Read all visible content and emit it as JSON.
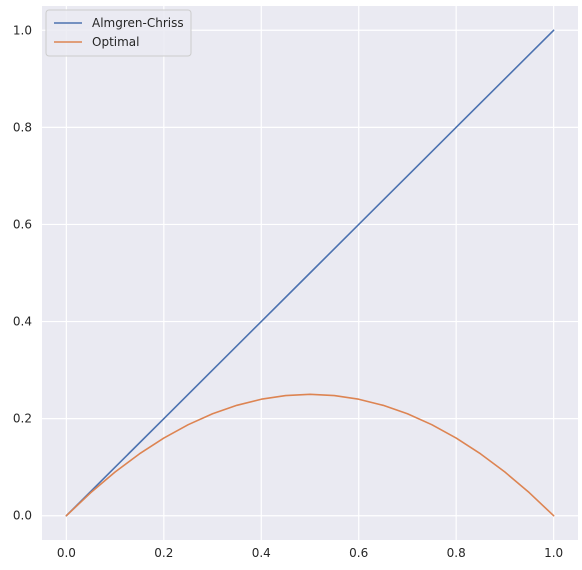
{
  "chart_data": {
    "type": "line",
    "title": "",
    "xlabel": "",
    "ylabel": "",
    "xlim": [
      -0.05,
      1.05
    ],
    "ylim": [
      -0.05,
      1.05
    ],
    "xticks": [
      0.0,
      0.2,
      0.4,
      0.6,
      0.8,
      1.0
    ],
    "xtick_labels": [
      "0.0",
      "0.2",
      "0.4",
      "0.6",
      "0.8",
      "1.0"
    ],
    "yticks": [
      0.0,
      0.2,
      0.4,
      0.6,
      0.8,
      1.0
    ],
    "ytick_labels": [
      "0.0",
      "0.2",
      "0.4",
      "0.6",
      "0.8",
      "1.0"
    ],
    "grid": true,
    "legend_position": "top-left",
    "background_color": "#eaeaf2",
    "grid_color": "#ffffff",
    "series": [
      {
        "name": "Almgren-Chriss",
        "color": "#4c72b0",
        "x": [
          0.0,
          0.1,
          0.2,
          0.3,
          0.4,
          0.5,
          0.6,
          0.7,
          0.8,
          0.9,
          1.0
        ],
        "y": [
          0.0,
          0.1,
          0.2,
          0.3,
          0.4,
          0.5,
          0.6,
          0.7,
          0.8,
          0.9,
          1.0
        ]
      },
      {
        "name": "Optimal",
        "color": "#dd8452",
        "x": [
          0.0,
          0.05,
          0.1,
          0.15,
          0.2,
          0.25,
          0.3,
          0.35,
          0.4,
          0.45,
          0.5,
          0.55,
          0.6,
          0.65,
          0.7,
          0.75,
          0.8,
          0.85,
          0.9,
          0.95,
          1.0
        ],
        "y": [
          0.0,
          0.0475,
          0.09,
          0.1275,
          0.16,
          0.1875,
          0.21,
          0.2275,
          0.24,
          0.2475,
          0.25,
          0.2475,
          0.24,
          0.2275,
          0.21,
          0.1875,
          0.16,
          0.1275,
          0.09,
          0.0475,
          0.0
        ]
      }
    ]
  }
}
